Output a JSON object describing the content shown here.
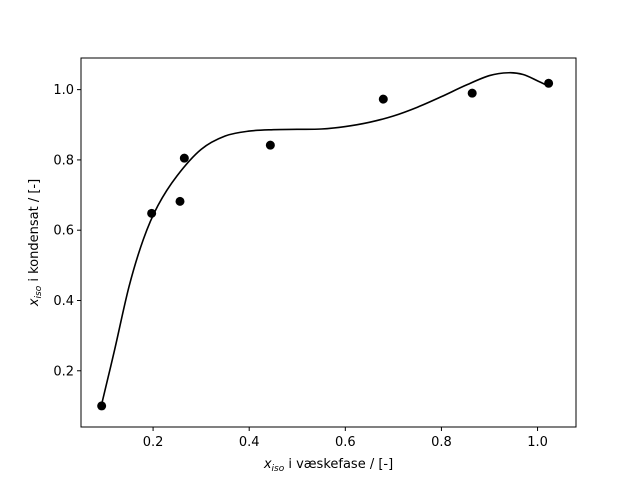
{
  "chart_data": {
    "type": "scatter",
    "title": "",
    "xlabel": {
      "var": "x",
      "sub": "iso",
      "rest": " i væskefase / [-]"
    },
    "ylabel": {
      "var": "x",
      "sub": "iso",
      "rest": " i kondensat / [-]"
    },
    "xlim": [
      0.05,
      1.08
    ],
    "ylim": [
      0.04,
      1.09
    ],
    "xticks": [
      0.2,
      0.4,
      0.6,
      0.8,
      1.0
    ],
    "xtick_labels": [
      "0.2",
      "0.4",
      "0.6",
      "0.8",
      "1.0"
    ],
    "yticks": [
      0.2,
      0.4,
      0.6,
      0.8,
      1.0
    ],
    "ytick_labels": [
      "0.2",
      "0.4",
      "0.6",
      "0.8",
      "1.0"
    ],
    "grid": false,
    "series": [
      {
        "kind": "scatter",
        "x": [
          0.093,
          0.197,
          0.256,
          0.265,
          0.444,
          0.679,
          0.864,
          1.023
        ],
        "y": [
          0.1,
          0.648,
          0.682,
          0.805,
          0.842,
          0.973,
          0.99,
          1.018
        ],
        "color": "#000000"
      },
      {
        "kind": "line",
        "x": [
          0.093,
          0.12,
          0.15,
          0.18,
          0.21,
          0.25,
          0.3,
          0.35,
          0.4,
          0.45,
          0.5,
          0.55,
          0.6,
          0.65,
          0.7,
          0.75,
          0.8,
          0.85,
          0.9,
          0.94,
          0.97,
          1.0,
          1.023
        ],
        "y": [
          0.105,
          0.26,
          0.44,
          0.575,
          0.67,
          0.755,
          0.83,
          0.868,
          0.882,
          0.886,
          0.887,
          0.888,
          0.895,
          0.907,
          0.925,
          0.95,
          0.98,
          1.012,
          1.04,
          1.048,
          1.043,
          1.025,
          1.01
        ],
        "color": "#000000"
      }
    ]
  }
}
